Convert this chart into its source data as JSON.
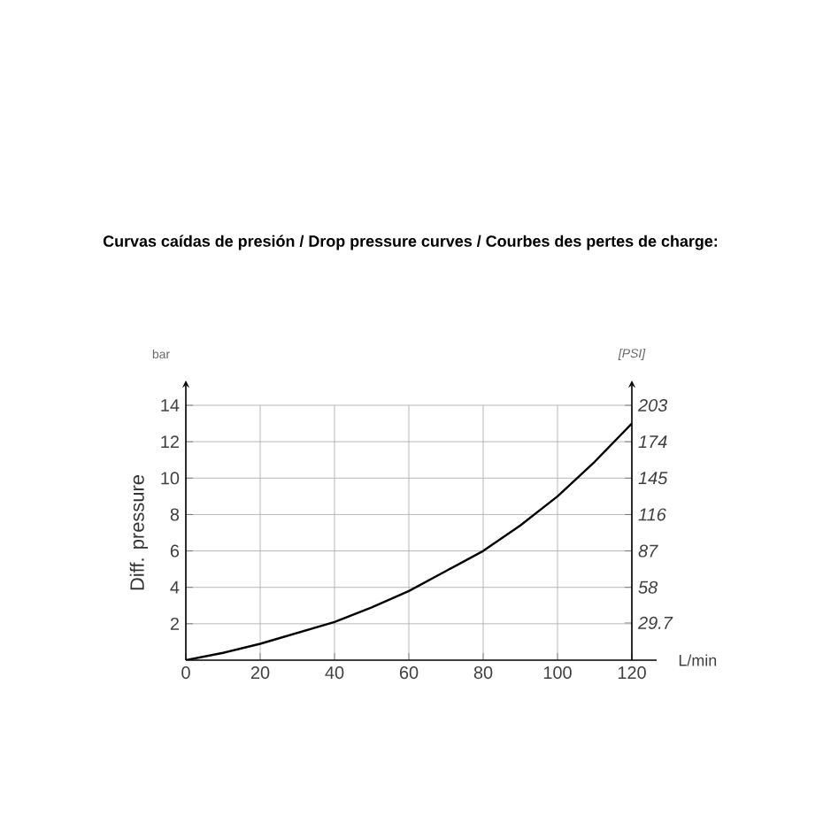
{
  "chart_data": {
    "type": "line",
    "title": "Curvas caídas de presión / Drop pressure curves / Courbes des pertes de charge:",
    "xlabel": "L/min",
    "ylabel": "Diff. pressure",
    "y2label": "[PSI]",
    "annotations": [
      "bar"
    ],
    "x": [
      0,
      10,
      20,
      30,
      40,
      50,
      60,
      70,
      80,
      90,
      100,
      110,
      120
    ],
    "series": [
      {
        "color": "#000000",
        "values": [
          0,
          0.4,
          0.9,
          1.5,
          2.1,
          2.9,
          3.8,
          4.9,
          6.0,
          7.4,
          9.0,
          10.9,
          13.0
        ]
      }
    ],
    "xlim": [
      0,
      120
    ],
    "xticks": [
      0,
      20,
      40,
      60,
      80,
      100,
      120
    ],
    "ylim": [
      0,
      14
    ],
    "yticks": [
      2,
      4,
      6,
      8,
      10,
      12,
      14
    ],
    "y2lim": [
      0,
      203
    ],
    "y2ticks": [
      29.7,
      58,
      87,
      116,
      145,
      174,
      203
    ],
    "grid": true
  }
}
